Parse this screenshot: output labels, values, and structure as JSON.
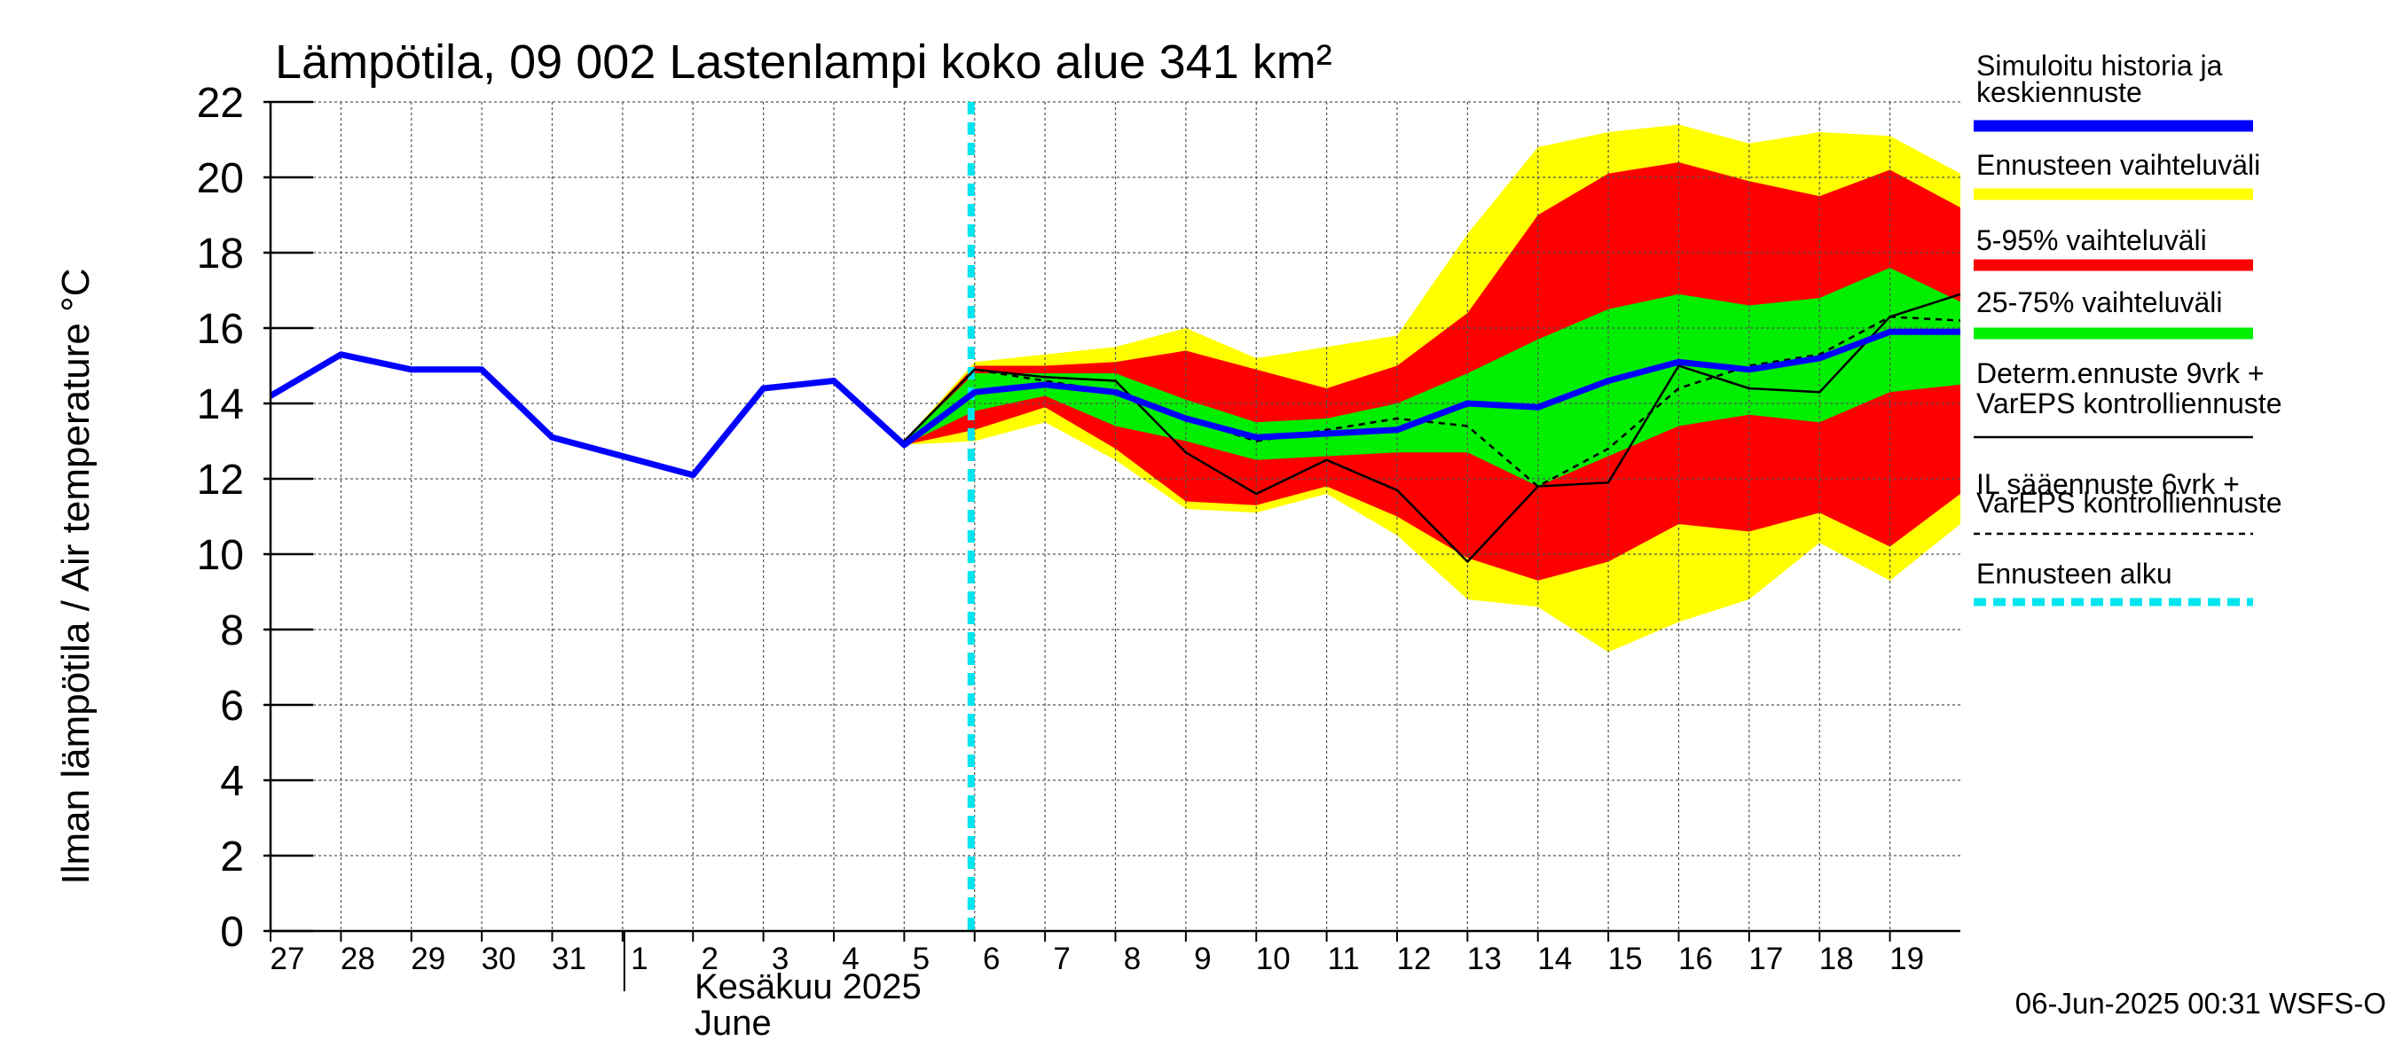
{
  "chart_data": {
    "type": "line",
    "title": "Lämpötila, 09 002 Lastenlampi koko alue 341 km²",
    "ylabel": "Ilman lämpötila / Air temperature   °C",
    "ylim": [
      0,
      22
    ],
    "yticks": [
      0,
      2,
      4,
      6,
      8,
      10,
      12,
      14,
      16,
      18,
      20,
      22
    ],
    "x_range_days": [
      0,
      24
    ],
    "day_ticks": [
      {
        "day": 0,
        "label": "27"
      },
      {
        "day": 1,
        "label": "28"
      },
      {
        "day": 2,
        "label": "29"
      },
      {
        "day": 3,
        "label": "30"
      },
      {
        "day": 4,
        "label": "31"
      },
      {
        "day": 5,
        "label": "1"
      },
      {
        "day": 6,
        "label": "2"
      },
      {
        "day": 7,
        "label": "3"
      },
      {
        "day": 8,
        "label": "4"
      },
      {
        "day": 9,
        "label": "5"
      },
      {
        "day": 10,
        "label": "6"
      },
      {
        "day": 11,
        "label": "7"
      },
      {
        "day": 12,
        "label": "8"
      },
      {
        "day": 13,
        "label": "9"
      },
      {
        "day": 14,
        "label": "10"
      },
      {
        "day": 15,
        "label": "11"
      },
      {
        "day": 16,
        "label": "12"
      },
      {
        "day": 17,
        "label": "13"
      },
      {
        "day": 18,
        "label": "14"
      },
      {
        "day": 19,
        "label": "15"
      },
      {
        "day": 20,
        "label": "16"
      },
      {
        "day": 21,
        "label": "17"
      },
      {
        "day": 22,
        "label": "18"
      },
      {
        "day": 23,
        "label": "19"
      }
    ],
    "month_divider_day": 5,
    "month_label_fi": "Kesäkuu  2025",
    "month_label_en": "June",
    "forecast_start_day": 10,
    "band_x": [
      9,
      10,
      11,
      12,
      13,
      14,
      15,
      16,
      17,
      18,
      19,
      20,
      21,
      22,
      23,
      24
    ],
    "bands": [
      {
        "name": "Ennusteen vaihteluväli",
        "color": "#ffff00",
        "upper": [
          13.0,
          15.1,
          15.3,
          15.5,
          16.0,
          15.2,
          15.5,
          15.8,
          18.5,
          20.8,
          21.2,
          21.4,
          20.9,
          21.2,
          21.1,
          20.1
        ],
        "lower": [
          12.9,
          13.0,
          13.5,
          12.5,
          11.2,
          11.1,
          11.6,
          10.5,
          8.8,
          8.6,
          7.4,
          8.2,
          8.8,
          10.3,
          9.3,
          10.8
        ]
      },
      {
        "name": "5-95% vaihteluväli",
        "color": "#ff0000",
        "upper": [
          13.0,
          15.0,
          15.0,
          15.1,
          15.4,
          14.9,
          14.4,
          15.0,
          16.4,
          19.0,
          20.1,
          20.4,
          19.9,
          19.5,
          20.2,
          19.2
        ],
        "lower": [
          12.9,
          13.3,
          13.9,
          12.8,
          11.4,
          11.3,
          11.8,
          11.0,
          9.9,
          9.3,
          9.8,
          10.8,
          10.6,
          11.1,
          10.2,
          11.6
        ]
      },
      {
        "name": "25-75% vaihteluväli",
        "color": "#00ee00",
        "upper": [
          13.0,
          14.8,
          14.8,
          14.8,
          14.1,
          13.5,
          13.6,
          14.0,
          14.8,
          15.7,
          16.5,
          16.9,
          16.6,
          16.8,
          17.6,
          16.7
        ],
        "lower": [
          12.9,
          13.8,
          14.2,
          13.4,
          13.0,
          12.5,
          12.6,
          12.7,
          12.7,
          11.8,
          12.6,
          13.4,
          13.7,
          13.5,
          14.3,
          14.5
        ]
      }
    ],
    "series": [
      {
        "name": "Simuloitu historia ja keskiennuste",
        "color": "#0000ff",
        "width": 7,
        "x": [
          0,
          1,
          2,
          3,
          4,
          5,
          6,
          7,
          8,
          9,
          10,
          11,
          12,
          13,
          14,
          15,
          16,
          17,
          18,
          19,
          20,
          21,
          22,
          23,
          24
        ],
        "y": [
          14.2,
          15.3,
          14.9,
          14.9,
          13.1,
          12.6,
          12.1,
          14.4,
          14.6,
          12.9,
          14.3,
          14.5,
          14.3,
          13.6,
          13.1,
          13.2,
          13.3,
          14.0,
          13.9,
          14.6,
          15.1,
          14.9,
          15.2,
          15.9,
          15.9
        ]
      },
      {
        "name": "Determ.ennuste 9vrk + VarEPS kontrolliennuste",
        "color": "#000000",
        "width": 2.5,
        "dash": "",
        "x": [
          9,
          10,
          11,
          12,
          13,
          14,
          15,
          16,
          17,
          18,
          19,
          20,
          21,
          22,
          23,
          24
        ],
        "y": [
          13.0,
          14.9,
          14.7,
          14.6,
          12.7,
          11.6,
          12.5,
          11.7,
          9.8,
          11.8,
          11.9,
          15.0,
          14.4,
          14.3,
          16.3,
          16.9
        ]
      },
      {
        "name": "IL sääennuste 6vrk + VarEPS kontrolliennuste",
        "color": "#000000",
        "width": 2.5,
        "dash": "7 6",
        "x": [
          9,
          10,
          11,
          12,
          13,
          14,
          15,
          16,
          17,
          18,
          19,
          20,
          21,
          22,
          23,
          24
        ],
        "y": [
          13.0,
          14.9,
          14.6,
          14.3,
          13.6,
          13.0,
          13.3,
          13.6,
          13.4,
          11.8,
          12.8,
          14.4,
          15.0,
          15.3,
          16.3,
          16.2
        ]
      }
    ]
  },
  "legend": [
    {
      "lines": [
        "Simuloitu historia ja",
        "keskiennuste"
      ],
      "color": "#0000ff",
      "style": "thick"
    },
    {
      "lines": [
        "Ennusteen vaihteluväli"
      ],
      "color": "#ffff00",
      "style": "thick"
    },
    {
      "lines": [
        "5-95% vaihteluväli"
      ],
      "color": "#ff0000",
      "style": "thick"
    },
    {
      "lines": [
        "25-75% vaihteluväli"
      ],
      "color": "#00ee00",
      "style": "thick"
    },
    {
      "lines": [
        "Determ.ennuste 9vrk +",
        "VarEPS kontrolliennuste"
      ],
      "color": "#000000",
      "style": "thin"
    },
    {
      "lines": [
        "IL sääennuste 6vrk  +",
        "  VarEPS kontrolliennuste"
      ],
      "color": "#000000",
      "style": "dashed"
    },
    {
      "lines": [
        "Ennusteen alku"
      ],
      "color": "#00e5ee",
      "style": "dotted"
    }
  ],
  "footer": "06-Jun-2025 00:31 WSFS-O"
}
